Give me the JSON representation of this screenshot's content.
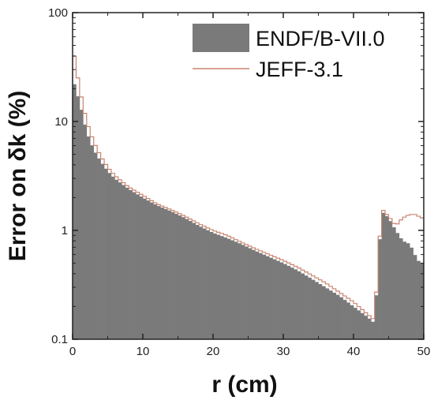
{
  "chart_data": {
    "type": "histogram",
    "xlabel": "r (cm)",
    "ylabel": "Error on δk (%)",
    "xlim": [
      0,
      50
    ],
    "ylim": [
      0.1,
      100
    ],
    "yscale": "log",
    "x_ticks": [
      0,
      10,
      20,
      30,
      40,
      50
    ],
    "x_tick_labels": [
      "0",
      "10",
      "20",
      "30",
      "40",
      "50"
    ],
    "y_ticks": [
      0.1,
      1,
      10,
      100
    ],
    "y_tick_labels": [
      "0.1",
      "1",
      "10",
      "100"
    ],
    "grid": false,
    "legend_position": "top-right",
    "bin_width": 0.5,
    "series": [
      {
        "name": "ENDF/B-VII.0",
        "style": "filled-histogram",
        "color": "#7a7a7a",
        "x": [
          0,
          1,
          2,
          3,
          4,
          5,
          6,
          8,
          10,
          12,
          14,
          16,
          18,
          20,
          22,
          24,
          26,
          28,
          30,
          32,
          34,
          36,
          38,
          40,
          42,
          43,
          44,
          44.5,
          45,
          46,
          47,
          48,
          49,
          49.5
        ],
        "values": [
          25,
          15,
          8,
          5.5,
          4.3,
          3.5,
          3.0,
          2.4,
          2.0,
          1.7,
          1.5,
          1.3,
          1.1,
          0.95,
          0.85,
          0.75,
          0.65,
          0.57,
          0.5,
          0.43,
          0.36,
          0.3,
          0.25,
          0.2,
          0.16,
          0.14,
          1.5,
          1.4,
          1.3,
          1.0,
          0.8,
          0.75,
          0.55,
          0.5
        ]
      },
      {
        "name": "JEFF-3.1",
        "style": "step-line",
        "color": "#c8836e",
        "x": [
          0,
          1,
          2,
          3,
          4,
          5,
          6,
          8,
          10,
          12,
          14,
          16,
          18,
          20,
          22,
          24,
          26,
          28,
          30,
          32,
          34,
          36,
          38,
          40,
          42,
          43,
          44,
          44.5,
          45,
          46,
          47,
          48,
          49,
          49.5
        ],
        "values": [
          50,
          20,
          10,
          6.5,
          4.8,
          3.8,
          3.2,
          2.5,
          2.1,
          1.75,
          1.55,
          1.35,
          1.15,
          1.0,
          0.9,
          0.78,
          0.68,
          0.6,
          0.53,
          0.46,
          0.39,
          0.33,
          0.27,
          0.22,
          0.17,
          0.15,
          1.6,
          1.45,
          1.35,
          1.1,
          1.3,
          1.4,
          1.4,
          1.3
        ]
      }
    ]
  }
}
